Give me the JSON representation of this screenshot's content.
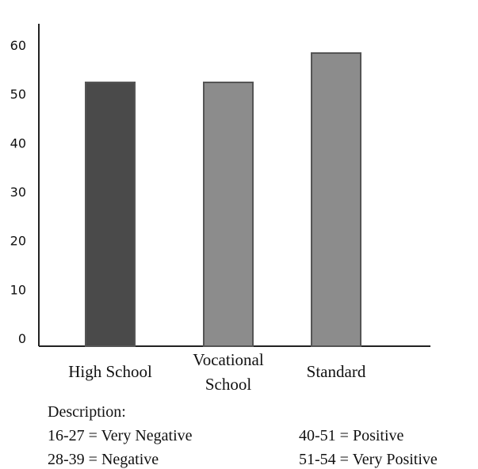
{
  "chart_data": {
    "type": "bar",
    "categories": [
      "High School",
      "Vocational School",
      "Standard"
    ],
    "category_lines": [
      [
        "High School"
      ],
      [
        "Vocational",
        "School"
      ],
      [
        "Standard"
      ]
    ],
    "values": [
      54,
      54,
      60
    ],
    "ylim": [
      0,
      60
    ],
    "yticks": [
      0,
      10,
      20,
      30,
      40,
      50,
      60
    ],
    "bar_colors": [
      "#4a4a4a",
      "#8c8c8c",
      "#8c8c8c"
    ],
    "grid": false,
    "title": "",
    "xlabel": "",
    "ylabel": ""
  },
  "legend": {
    "heading": "Description:",
    "items": [
      "16-27 = Very Negative",
      "28-39 = Negative",
      "40-51 = Positive",
      "51-54 = Very Positive"
    ]
  }
}
